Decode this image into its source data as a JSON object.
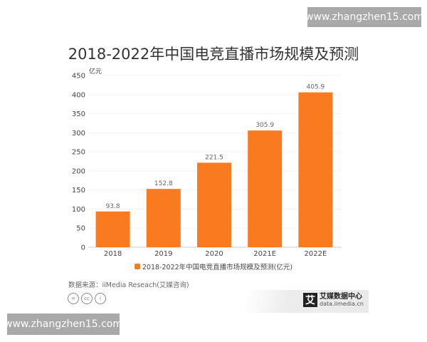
{
  "watermark_top": "www.zhangzhen15.com",
  "watermark_bottom": "www.zhangzhen15.com",
  "source": "数据来源：iiMedia Reseach(艾媒咨询)",
  "logo": {
    "name": "艾媒数据中心",
    "url": "data.iimedia.cn",
    "mark": "艾"
  },
  "license_icons": [
    "nd-icon",
    "cc-icon",
    "by-icon"
  ],
  "chart_data": {
    "type": "bar",
    "title": "2018-2022年中国电竞直播市场规模及预测",
    "ylabel": "亿元",
    "categories": [
      "2018",
      "2019",
      "2020",
      "2021E",
      "2022E"
    ],
    "series": [
      {
        "name": "2018-2022年中国电竞直播市场规模及预测(亿元)",
        "values": [
          93.8,
          152.8,
          221.5,
          305.9,
          405.9
        ]
      }
    ],
    "value_labels": [
      "93.8",
      "152.8",
      "221.5",
      "305.9",
      "405.9"
    ],
    "ylim": [
      0,
      450
    ],
    "yticks": [
      "0",
      "50",
      "100",
      "150",
      "200",
      "250",
      "300",
      "350",
      "400",
      "450"
    ],
    "grid": true,
    "legend": "bottom",
    "color": "#fa7a1f"
  }
}
